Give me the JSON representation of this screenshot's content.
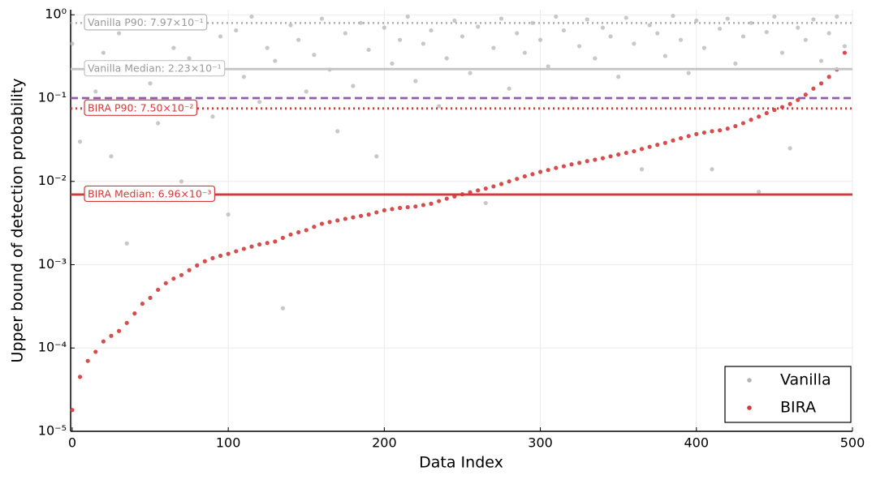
{
  "chart_data": {
    "type": "scatter",
    "log_y": true,
    "grid": true,
    "legend": "lower right",
    "xlabel": "Data Index",
    "ylabel": "Upper bound of detection probability",
    "xlim": [
      -1,
      500
    ],
    "xticks": [
      0,
      100,
      200,
      300,
      400,
      500
    ],
    "ylim": [
      1e-05,
      1.15
    ],
    "yticks": [
      {
        "value": 1e-05,
        "label": "10⁻⁵"
      },
      {
        "value": 0.0001,
        "label": "10⁻⁴"
      },
      {
        "value": 0.001,
        "label": "10⁻³"
      },
      {
        "value": 0.01,
        "label": "10⁻²"
      },
      {
        "value": 0.1,
        "label": "10⁻¹"
      },
      {
        "value": 1,
        "label": "10⁰"
      }
    ],
    "x": [
      0,
      5,
      10,
      15,
      20,
      25,
      30,
      35,
      40,
      45,
      50,
      55,
      60,
      65,
      70,
      75,
      80,
      85,
      90,
      95,
      100,
      105,
      110,
      115,
      120,
      125,
      130,
      135,
      140,
      145,
      150,
      155,
      160,
      165,
      170,
      175,
      180,
      185,
      190,
      195,
      200,
      205,
      210,
      215,
      220,
      225,
      230,
      235,
      240,
      245,
      250,
      255,
      260,
      265,
      270,
      275,
      280,
      285,
      290,
      295,
      300,
      305,
      310,
      315,
      320,
      325,
      330,
      335,
      340,
      345,
      350,
      355,
      360,
      365,
      370,
      375,
      380,
      385,
      390,
      395,
      400,
      405,
      410,
      415,
      420,
      425,
      430,
      435,
      440,
      445,
      450,
      455,
      460,
      465,
      470,
      475,
      480,
      485,
      490,
      495
    ],
    "series": [
      {
        "name": "Vanilla",
        "color": "#b5b5b5",
        "values": [
          0.45,
          0.03,
          0.8,
          0.12,
          0.35,
          0.02,
          0.6,
          0.0018,
          0.25,
          0.9,
          0.15,
          0.05,
          0.7,
          0.4,
          0.01,
          0.3,
          0.85,
          0.2,
          0.06,
          0.55,
          0.004,
          0.65,
          0.18,
          0.95,
          0.09,
          0.4,
          0.28,
          0.0003,
          0.75,
          0.5,
          0.12,
          0.33,
          0.9,
          0.22,
          0.04,
          0.6,
          0.14,
          0.8,
          0.38,
          0.02,
          0.7,
          0.26,
          0.5,
          0.95,
          0.16,
          0.45,
          0.65,
          0.08,
          0.3,
          0.85,
          0.55,
          0.2,
          0.72,
          0.0055,
          0.4,
          0.9,
          0.13,
          0.6,
          0.35,
          0.8,
          0.5,
          0.24,
          0.95,
          0.65,
          0.1,
          0.42,
          0.88,
          0.3,
          0.7,
          0.55,
          0.18,
          0.92,
          0.45,
          0.014,
          0.75,
          0.6,
          0.32,
          0.97,
          0.5,
          0.2,
          0.85,
          0.4,
          0.014,
          0.68,
          0.9,
          0.26,
          0.55,
          0.8,
          0.0075,
          0.62,
          0.95,
          0.35,
          0.025,
          0.7,
          0.5,
          0.88,
          0.28,
          0.6,
          0.95,
          0.42
        ]
      },
      {
        "name": "BIRA",
        "color": "#d03a3a",
        "values": [
          1.8e-05,
          4.5e-05,
          7e-05,
          9e-05,
          0.00012,
          0.00014,
          0.00016,
          0.0002,
          0.00026,
          0.00034,
          0.0004,
          0.0005,
          0.0006,
          0.00068,
          0.00075,
          0.00086,
          0.00098,
          0.0011,
          0.0012,
          0.00128,
          0.00135,
          0.00145,
          0.00155,
          0.00165,
          0.00175,
          0.00182,
          0.0019,
          0.0021,
          0.0023,
          0.00245,
          0.0026,
          0.00285,
          0.0031,
          0.00325,
          0.0034,
          0.00355,
          0.0037,
          0.00385,
          0.004,
          0.00425,
          0.0045,
          0.00465,
          0.0048,
          0.0049,
          0.005,
          0.0052,
          0.0054,
          0.0058,
          0.0062,
          0.0066,
          0.007,
          0.0074,
          0.0078,
          0.0082,
          0.0087,
          0.0093,
          0.01,
          0.0107,
          0.0115,
          0.0122,
          0.013,
          0.0137,
          0.0145,
          0.0152,
          0.016,
          0.0167,
          0.0175,
          0.0182,
          0.019,
          0.02,
          0.021,
          0.022,
          0.023,
          0.0245,
          0.026,
          0.0275,
          0.029,
          0.031,
          0.033,
          0.035,
          0.037,
          0.0385,
          0.04,
          0.041,
          0.043,
          0.046,
          0.05,
          0.055,
          0.06,
          0.066,
          0.072,
          0.078,
          0.085,
          0.095,
          0.11,
          0.13,
          0.15,
          0.18,
          0.22,
          0.35
        ]
      }
    ],
    "reference_lines": [
      {
        "value": 0.797,
        "label": "Vanilla P90: 7.97×10⁻¹",
        "color": "#b5b5b5",
        "style": "dotted"
      },
      {
        "value": 0.223,
        "label": "Vanilla Median: 2.23×10⁻¹",
        "color": "#c4c4c4",
        "style": "solid"
      },
      {
        "value": 0.1,
        "color": "#8e5ea8",
        "style": "dashed"
      },
      {
        "value": 0.075,
        "label": "BIRA P90: 7.50×10⁻²",
        "color": "#d03a3a",
        "style": "dotted"
      },
      {
        "value": 0.00696,
        "label": "BIRA Median: 6.96×10⁻³",
        "color": "#d03a3a",
        "style": "solid"
      }
    ]
  }
}
